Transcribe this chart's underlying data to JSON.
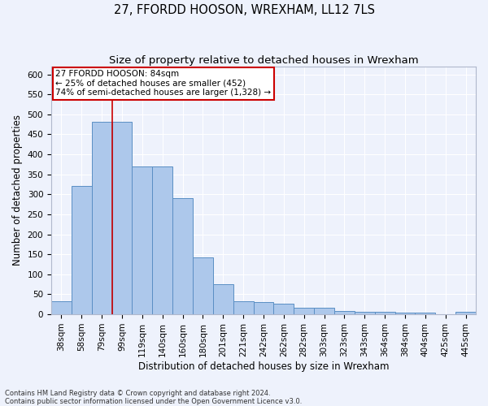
{
  "title": "27, FFORDD HOOSON, WREXHAM, LL12 7LS",
  "subtitle": "Size of property relative to detached houses in Wrexham",
  "xlabel": "Distribution of detached houses by size in Wrexham",
  "ylabel": "Number of detached properties",
  "categories": [
    "38sqm",
    "58sqm",
    "79sqm",
    "99sqm",
    "119sqm",
    "140sqm",
    "160sqm",
    "180sqm",
    "201sqm",
    "221sqm",
    "242sqm",
    "262sqm",
    "282sqm",
    "303sqm",
    "323sqm",
    "343sqm",
    "364sqm",
    "384sqm",
    "404sqm",
    "425sqm",
    "445sqm"
  ],
  "values": [
    32,
    320,
    482,
    482,
    370,
    370,
    290,
    143,
    76,
    33,
    30,
    27,
    16,
    16,
    9,
    6,
    6,
    5,
    5,
    0,
    6
  ],
  "bar_color": "#adc8eb",
  "bar_edge_color": "#5a8fc4",
  "vline_index": 2,
  "annotation_text1": "27 FFORDD HOOSON: 84sqm",
  "annotation_text2": "← 25% of detached houses are smaller (452)",
  "annotation_text3": "74% of semi-detached houses are larger (1,328) →",
  "annotation_box_facecolor": "#ffffff",
  "annotation_box_edgecolor": "#cc0000",
  "vline_color": "#cc0000",
  "ylim": [
    0,
    620
  ],
  "yticks": [
    0,
    50,
    100,
    150,
    200,
    250,
    300,
    350,
    400,
    450,
    500,
    550,
    600
  ],
  "footnote1": "Contains HM Land Registry data © Crown copyright and database right 2024.",
  "footnote2": "Contains public sector information licensed under the Open Government Licence v3.0.",
  "background_color": "#eef2fc",
  "grid_color": "#ffffff",
  "title_fontsize": 10.5,
  "subtitle_fontsize": 9.5,
  "ylabel_fontsize": 8.5,
  "xlabel_fontsize": 8.5,
  "tick_fontsize": 7.5,
  "annot_fontsize": 7.5,
  "footnote_fontsize": 6.0
}
